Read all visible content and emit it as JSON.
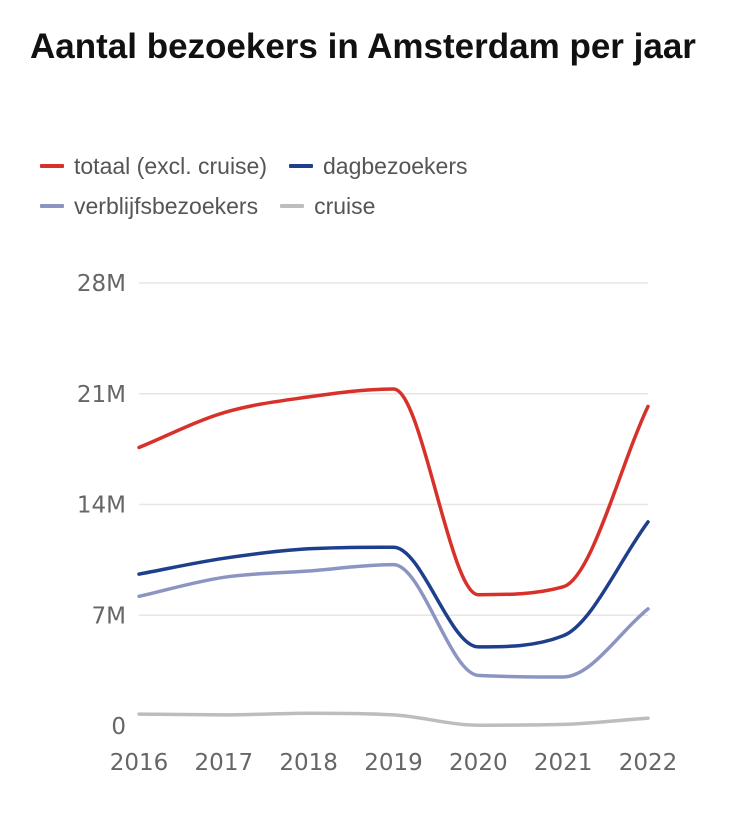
{
  "title": "Aantal bezoekers in Amsterdam per jaar",
  "colors": {
    "totaal": "#d7312a",
    "dagbezoekers": "#1e3f8c",
    "verblijfsbezoekers": "#8c95c2",
    "cruise": "#bdbdbd",
    "grid": "#e6e6e6"
  },
  "chart_data": {
    "type": "line",
    "title": "Aantal bezoekers in Amsterdam per jaar",
    "x": [
      2016,
      2017,
      2018,
      2019,
      2020,
      2021,
      2022
    ],
    "x_tick_labels": [
      "2016",
      "2017",
      "2018",
      "2019",
      "2020",
      "2021",
      "2022"
    ],
    "y_tick_values": [
      0,
      7,
      14,
      21,
      28
    ],
    "y_tick_labels": [
      "0",
      "7M",
      "14M",
      "21M",
      "28M"
    ],
    "ylim": [
      0,
      28
    ],
    "y_unit": "millions",
    "grid": true,
    "legend_position": "top",
    "series": [
      {
        "name": "totaal (excl. cruise)",
        "key": "totaal",
        "values": [
          17.6,
          19.8,
          20.8,
          21.3,
          8.3,
          8.8,
          20.2
        ]
      },
      {
        "name": "dagbezoekers",
        "key": "dagbezoekers",
        "values": [
          9.6,
          10.6,
          11.2,
          11.3,
          5.0,
          5.7,
          12.9
        ]
      },
      {
        "name": "verblijfsbezoekers",
        "key": "verblijfsbezoekers",
        "values": [
          8.2,
          9.4,
          9.8,
          10.2,
          3.2,
          3.1,
          7.4
        ]
      },
      {
        "name": "cruise",
        "key": "cruise",
        "values": [
          0.75,
          0.7,
          0.8,
          0.7,
          0.05,
          0.1,
          0.5
        ]
      }
    ]
  }
}
